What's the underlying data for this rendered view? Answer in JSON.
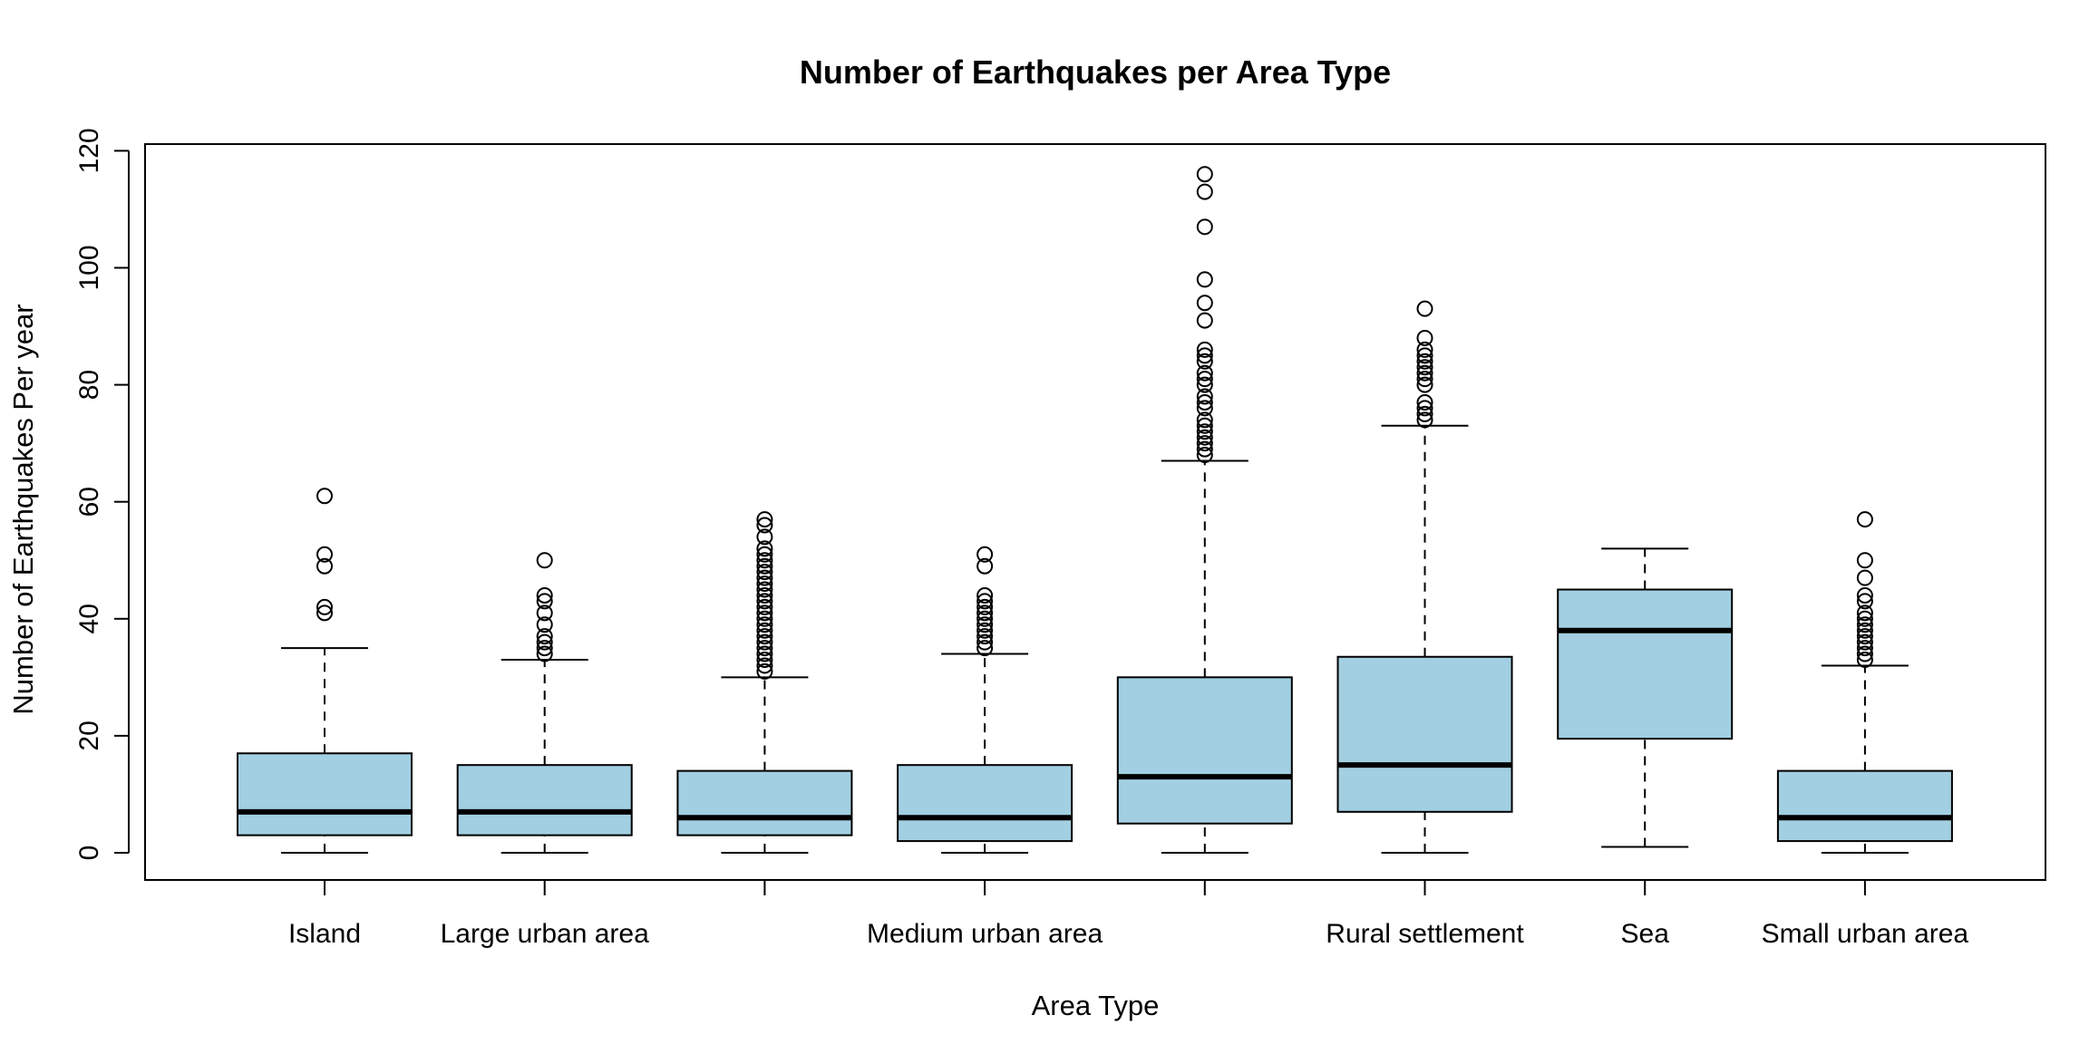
{
  "chart_data": {
    "type": "boxplot",
    "title": "Number of Earthquakes per Area Type",
    "xlabel": "Area Type",
    "ylabel": "Number of Earthquakes Per year",
    "ylim": [
      -5,
      120
    ],
    "yticks": [
      0,
      20,
      40,
      60,
      80,
      100,
      120
    ],
    "grid": false,
    "legend": "none",
    "colors": {
      "box_fill": "#A2CFE1",
      "stroke": "#000000",
      "background": "#FFFFFF"
    },
    "categories": [
      "Island",
      "Large urban area",
      "",
      "Medium urban area",
      "",
      "Rural settlement",
      "Sea",
      "Small urban area"
    ],
    "boxes": [
      {
        "min": 0,
        "q1": 3,
        "median": 7,
        "q3": 17,
        "max": 35,
        "outliers": [
          41,
          42,
          49,
          51,
          61
        ]
      },
      {
        "min": 0,
        "q1": 3,
        "median": 7,
        "q3": 15,
        "max": 33,
        "outliers": [
          34,
          35,
          36,
          37,
          39,
          41,
          43,
          44,
          50
        ]
      },
      {
        "min": 0,
        "q1": 3,
        "median": 6,
        "q3": 14,
        "max": 30,
        "outliers": [
          31,
          32,
          33,
          34,
          35,
          36,
          37,
          38,
          39,
          40,
          41,
          42,
          43,
          44,
          45,
          46,
          47,
          48,
          49,
          50,
          51,
          52,
          54,
          56,
          57
        ]
      },
      {
        "min": 0,
        "q1": 2,
        "median": 6,
        "q3": 15,
        "max": 34,
        "outliers": [
          35,
          36,
          37,
          38,
          39,
          40,
          41,
          42,
          43,
          44,
          49,
          51
        ]
      },
      {
        "min": 0,
        "q1": 5,
        "median": 13,
        "q3": 30,
        "max": 67,
        "outliers": [
          68,
          69,
          70,
          71,
          72,
          73,
          74,
          76,
          77,
          78,
          80,
          81,
          82,
          84,
          85,
          86,
          91,
          94,
          98,
          107,
          113,
          116
        ]
      },
      {
        "min": 0,
        "q1": 7,
        "median": 15,
        "q3": 33.5,
        "max": 73,
        "outliers": [
          74,
          75,
          76,
          77,
          80,
          81,
          82,
          83,
          84,
          85,
          86,
          88,
          93
        ]
      },
      {
        "min": 1,
        "q1": 19.5,
        "median": 38,
        "q3": 45,
        "max": 52,
        "outliers": []
      },
      {
        "min": 0,
        "q1": 2,
        "median": 6,
        "q3": 14,
        "max": 32,
        "outliers": [
          33,
          34,
          35,
          36,
          37,
          38,
          39,
          40,
          41,
          43,
          44,
          47,
          50,
          57
        ]
      }
    ]
  }
}
